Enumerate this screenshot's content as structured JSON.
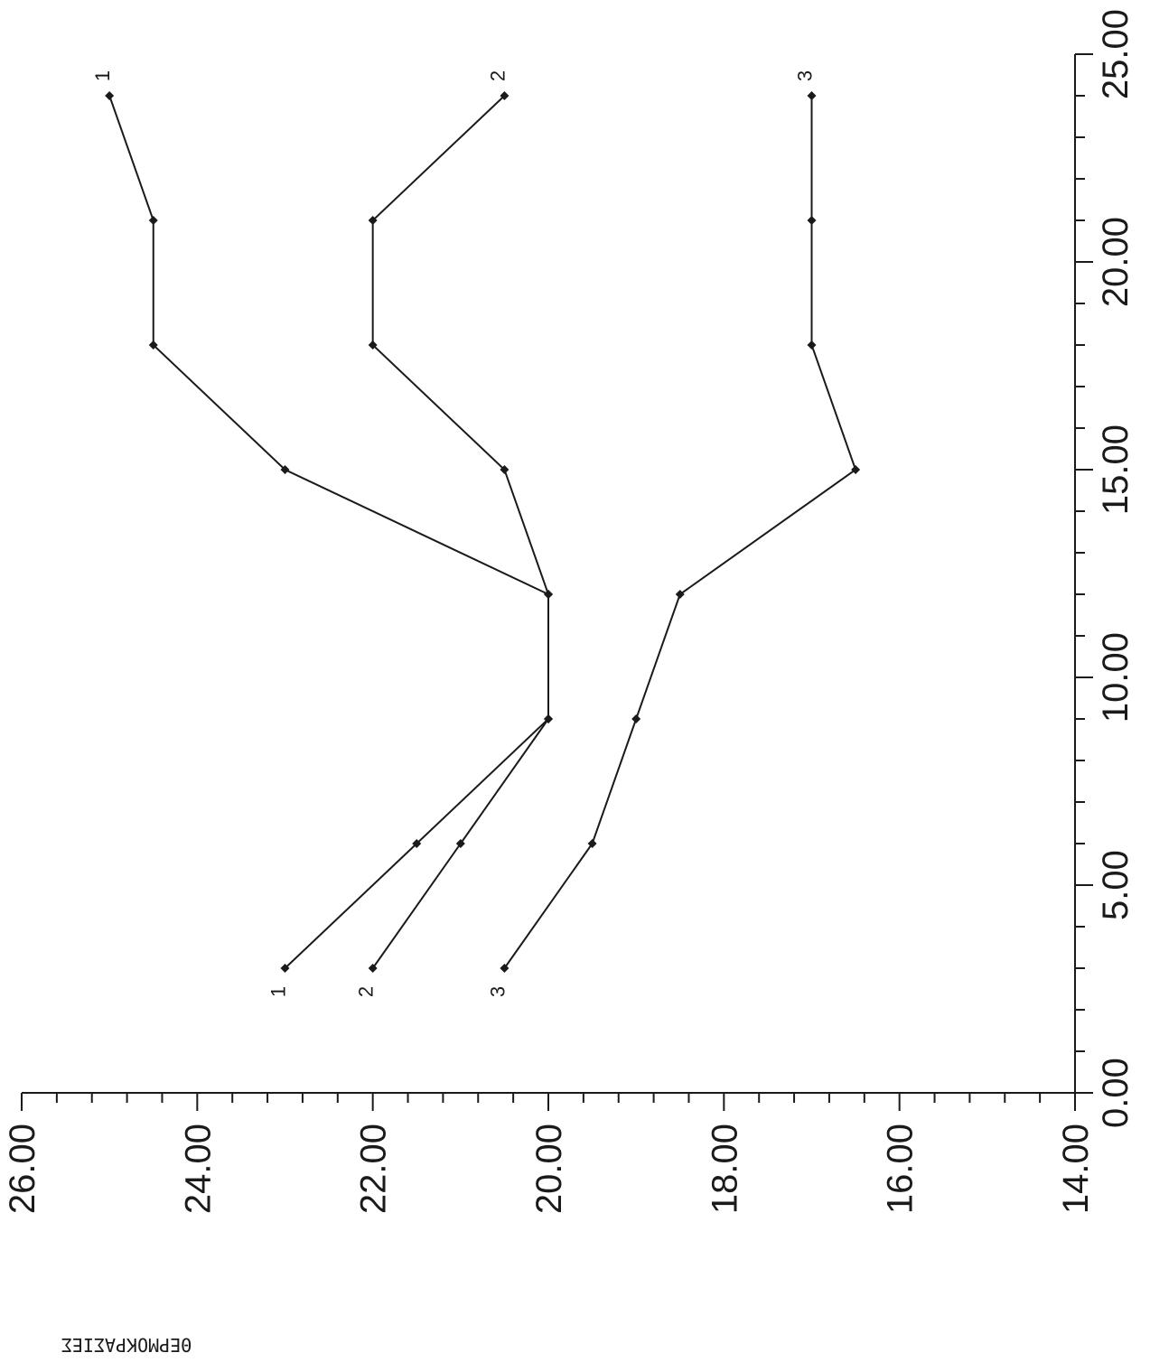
{
  "chart_data": {
    "type": "line",
    "orientation": "rotated 90 degrees clockwise",
    "title": "",
    "xlabel": "",
    "ylabel": "ΘΕΡΜΟΚΡΑΣΙΕΣ",
    "xlim": [
      0,
      25
    ],
    "ylim": [
      14,
      26
    ],
    "x_ticks": [
      "0.00",
      "5.00",
      "10.00",
      "15.00",
      "20.00",
      "25.00"
    ],
    "y_ticks": [
      "14.00",
      "16.00",
      "18.00",
      "20.00",
      "22.00",
      "24.00",
      "26.00"
    ],
    "x_minor_step": 1,
    "y_minor_step": 0.4,
    "grid": false,
    "legend": "none",
    "series": [
      {
        "name": "1",
        "x": [
          3,
          6,
          9,
          12,
          15,
          18,
          21,
          24
        ],
        "y": [
          23.0,
          21.5,
          20.0,
          20.0,
          23.0,
          24.5,
          24.5,
          25.0
        ]
      },
      {
        "name": "2",
        "x": [
          3,
          6,
          9,
          12,
          15,
          18,
          21,
          24
        ],
        "y": [
          22.0,
          21.0,
          20.0,
          20.0,
          20.5,
          22.0,
          22.0,
          20.5
        ]
      },
      {
        "name": "3",
        "x": [
          3,
          6,
          9,
          12,
          15,
          18,
          21,
          24
        ],
        "y": [
          20.5,
          19.5,
          19.0,
          18.5,
          16.5,
          17.0,
          17.0,
          17.0
        ]
      }
    ]
  }
}
